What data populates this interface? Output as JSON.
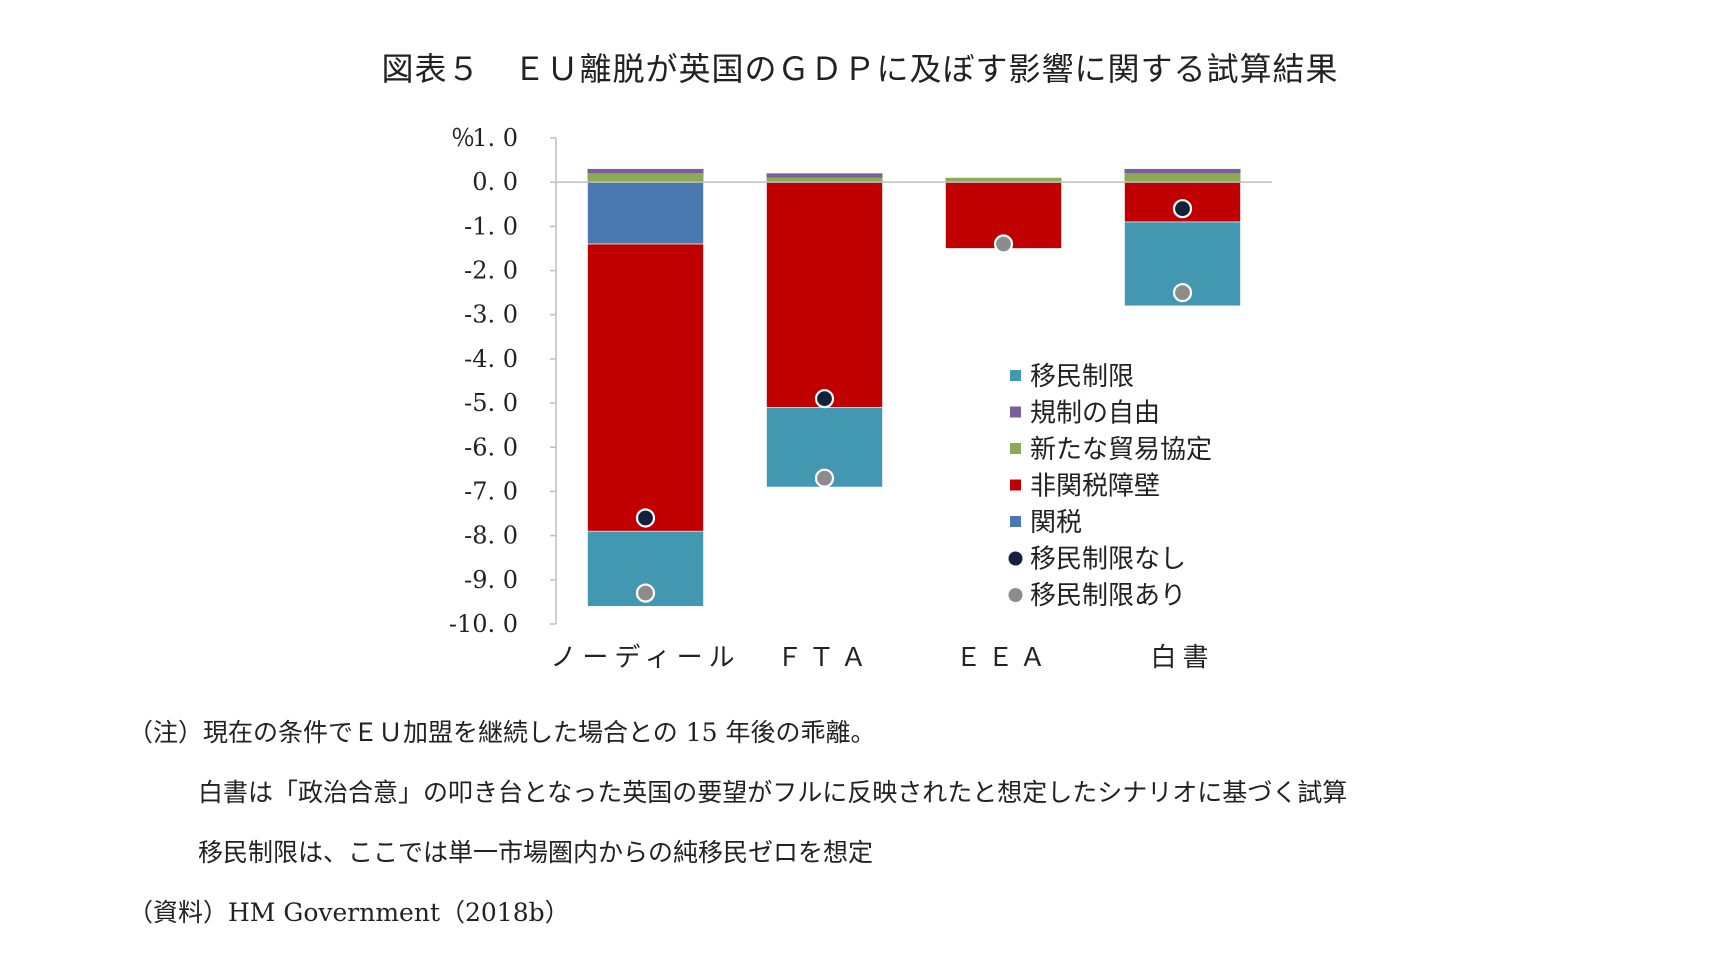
{
  "title": "図表５　ＥＵ離脱が英国のＧＤＰに及ぼす影響に関する試算結果",
  "chart_data": {
    "type": "bar",
    "stacked": true,
    "categories": [
      "ノーディール",
      "ＦＴＡ",
      "ＥＥＡ",
      "白書"
    ],
    "ylabel": "％",
    "ylim": [
      -10,
      1
    ],
    "yticks": [
      "1. 0",
      "0. 0",
      "-1. 0",
      "-2. 0",
      "-3. 0",
      "-4. 0",
      "-5. 0",
      "-6. 0",
      "-7. 0",
      "-8. 0",
      "-9. 0",
      "-10. 0"
    ],
    "series": [
      {
        "name": "移民制限",
        "color": "#4198b0",
        "values": [
          -1.7,
          -1.8,
          0,
          -1.9
        ]
      },
      {
        "name": "規制の自由",
        "color": "#7b5e9a",
        "values": [
          0.1,
          0.1,
          0,
          0.1
        ]
      },
      {
        "name": "新たな貿易協定",
        "color": "#8caa55",
        "values": [
          0.2,
          0.1,
          0.1,
          0.2
        ]
      },
      {
        "name": "非関税障壁",
        "color": "#c00000",
        "values": [
          -6.5,
          -5.1,
          -1.5,
          -0.9
        ]
      },
      {
        "name": "関税",
        "color": "#4a78b0",
        "values": [
          -1.4,
          0,
          0,
          0
        ]
      }
    ],
    "points": [
      {
        "name": "移民制限なし",
        "color": "#14213d",
        "values": [
          -7.6,
          -4.9,
          null,
          -0.6
        ]
      },
      {
        "name": "移民制限あり",
        "color": "#8c8c8c",
        "values": [
          -9.3,
          -6.7,
          -1.4,
          -2.5
        ]
      }
    ],
    "legend_position": "right-middle"
  },
  "notes": [
    "（注）現在の条件でＥＵ加盟を継続した場合との 15 年後の乖離。",
    "白書は「政治合意」の叩き台となった英国の要望がフルに反映されたと想定したシナリオに基づく試算",
    "移民制限は、ここでは単一市場圏内からの純移民ゼロを想定",
    "（資料）HM Government（2018b）"
  ]
}
